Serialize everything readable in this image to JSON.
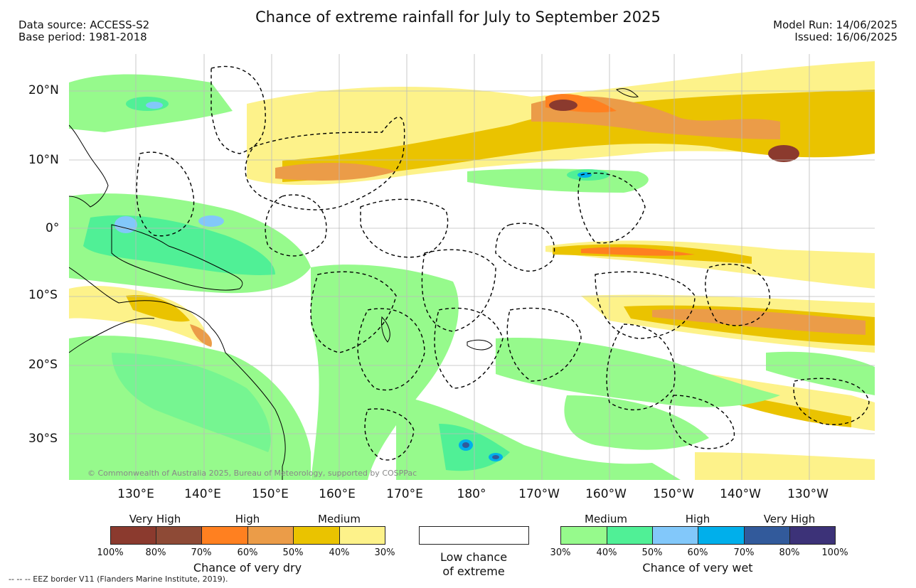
{
  "header": {
    "title": "Chance of extreme rainfall for July to September 2025",
    "data_source": "Data source: ACCESS-S2",
    "base_period": "Base period: 1981-2018",
    "model_run": "Model Run: 14/06/2025",
    "issued": "Issued: 16/06/2025"
  },
  "map": {
    "lat_labels": [
      "20°N",
      "10°N",
      "0°",
      "10°S",
      "20°S",
      "30°S"
    ],
    "lon_labels": [
      "130°E",
      "140°E",
      "150°E",
      "160°E",
      "170°E",
      "180°",
      "170°W",
      "160°W",
      "150°W",
      "140°W",
      "130°W"
    ],
    "copyright": "© Commonwealth of Australia 2025, Bureau of Meteorology, supported by COSPPac",
    "colors": {
      "land_line": "#000000",
      "eez_line": "#000000",
      "grid": "#bbbbbb"
    }
  },
  "legend_dry": {
    "title": "Chance of very dry",
    "categories": [
      "Very High",
      "High",
      "Medium"
    ],
    "ticks": [
      "100%",
      "80%",
      "70%",
      "60%",
      "50%",
      "40%",
      "30%"
    ],
    "colors": [
      "#8b3a2e",
      "#8e4a36",
      "#ff8020",
      "#eb9c48",
      "#eac300",
      "#fdf28a"
    ]
  },
  "legend_low": {
    "line1": "Low chance",
    "line2": "of extreme"
  },
  "legend_wet": {
    "title": "Chance of very wet",
    "categories": [
      "Medium",
      "High",
      "Very High"
    ],
    "ticks": [
      "30%",
      "40%",
      "50%",
      "60%",
      "70%",
      "80%",
      "100%"
    ],
    "colors": [
      "#96fa8c",
      "#50f096",
      "#82c8fa",
      "#00afeb",
      "#325a9b",
      "#3c3278"
    ]
  },
  "footnote": "-- -- -- EEZ border V11 (Flanders Marine Institute, 2019)."
}
